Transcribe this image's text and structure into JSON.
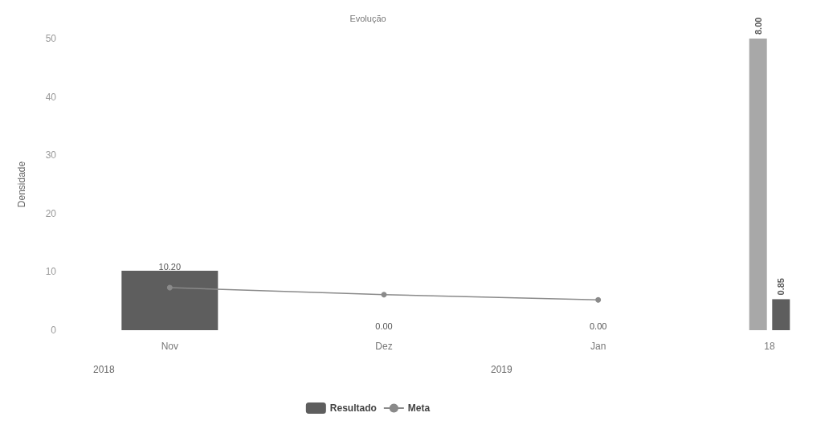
{
  "chart_data": [
    {
      "type": "bar",
      "title": "Evolução",
      "ylabel": "Densidade",
      "categories": [
        "Nov",
        "Dez",
        "Jan"
      ],
      "ylim": [
        0,
        50
      ],
      "yticks": [
        0,
        10,
        20,
        30,
        40,
        50
      ],
      "legend": "bottom",
      "marker": "circle",
      "annotations": [
        "2018",
        "2019"
      ],
      "series": [
        {
          "name": "Resultado",
          "color": "#5e5e5e",
          "values": [
            10.2,
            0,
            0
          ],
          "value_labels": [
            "10.20",
            "0.00",
            "0.00"
          ]
        },
        {
          "name": "Meta",
          "type": "line",
          "color": "#8a8a8a",
          "values": [
            7.3,
            6.1,
            5.2
          ]
        }
      ]
    },
    {
      "type": "bar",
      "categories": [
        "18"
      ],
      "series": [
        {
          "color": "#a8a8a8",
          "values": [
            8
          ],
          "value_labels": [
            "8.00"
          ]
        },
        {
          "color": "#5e5e5e",
          "values": [
            0.85
          ],
          "value_labels": [
            "0.85"
          ]
        }
      ]
    }
  ]
}
